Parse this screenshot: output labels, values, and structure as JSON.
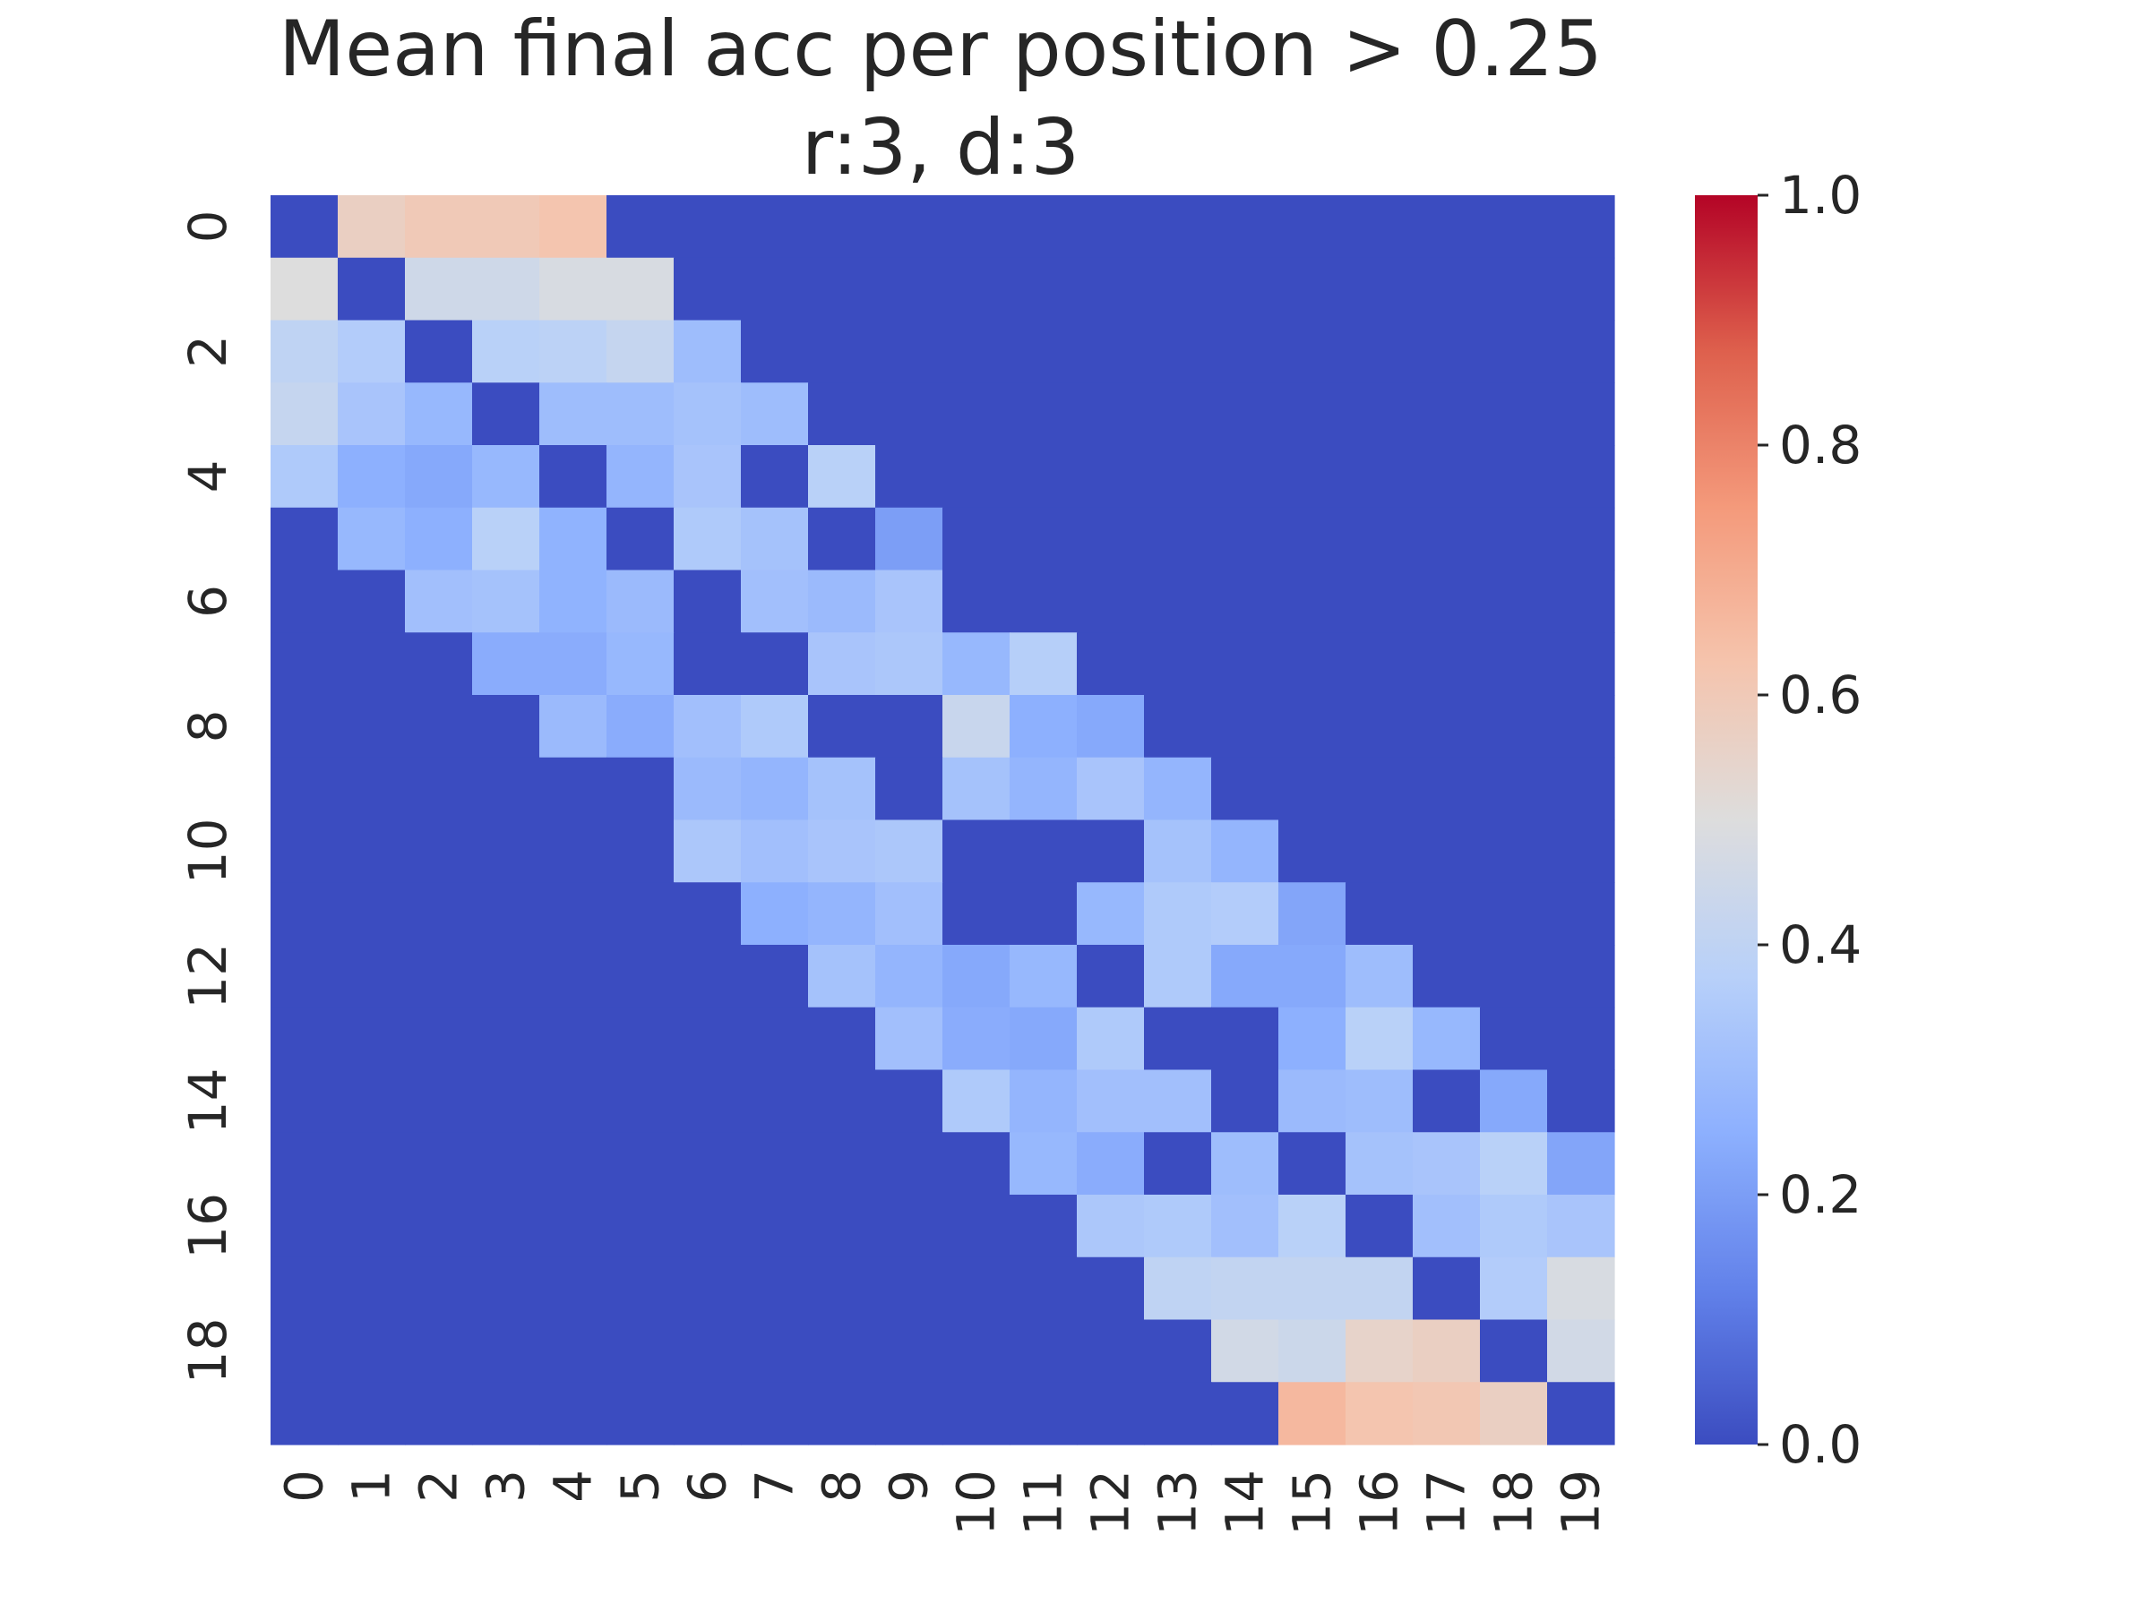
{
  "chart_data": {
    "type": "heatmap",
    "title": "Mean final acc per position > 0.25",
    "subtitle": "r:3, d:3",
    "x_labels": [
      "0",
      "1",
      "2",
      "3",
      "4",
      "5",
      "6",
      "7",
      "8",
      "9",
      "10",
      "11",
      "12",
      "13",
      "14",
      "15",
      "16",
      "17",
      "18",
      "19"
    ],
    "y_labels": [
      "0",
      "",
      "2",
      "",
      "4",
      "",
      "6",
      "",
      "8",
      "",
      "10",
      "",
      "12",
      "",
      "14",
      "",
      "16",
      "",
      "18",
      ""
    ],
    "colormap": "coolwarm",
    "vmin": 0.0,
    "vmax": 1.0,
    "colorbar_ticks": [
      "0.0",
      "0.2",
      "0.4",
      "0.6",
      "0.8",
      "1.0"
    ],
    "colorbar_tick_values": [
      0.0,
      0.2,
      0.4,
      0.6,
      0.8,
      1.0
    ],
    "values": [
      [
        0,
        0.57,
        0.6,
        0.6,
        0.62,
        0,
        0,
        0,
        0,
        0,
        0,
        0,
        0,
        0,
        0,
        0,
        0,
        0,
        0,
        0
      ],
      [
        0.5,
        0,
        0.45,
        0.45,
        0.48,
        0.48,
        0,
        0,
        0,
        0,
        0,
        0,
        0,
        0,
        0,
        0,
        0,
        0,
        0,
        0
      ],
      [
        0.4,
        0.36,
        0,
        0.38,
        0.39,
        0.42,
        0.3,
        0,
        0,
        0,
        0,
        0,
        0,
        0,
        0,
        0,
        0,
        0,
        0,
        0
      ],
      [
        0.42,
        0.33,
        0.28,
        0,
        0.3,
        0.3,
        0.32,
        0.3,
        0,
        0,
        0,
        0,
        0,
        0,
        0,
        0,
        0,
        0,
        0,
        0
      ],
      [
        0.35,
        0.25,
        0.23,
        0.28,
        0,
        0.27,
        0.33,
        0,
        0.38,
        0,
        0,
        0,
        0,
        0,
        0,
        0,
        0,
        0,
        0,
        0
      ],
      [
        0,
        0.28,
        0.25,
        0.38,
        0.26,
        0,
        0.35,
        0.32,
        0,
        0.2,
        0,
        0,
        0,
        0,
        0,
        0,
        0,
        0,
        0,
        0
      ],
      [
        0,
        0,
        0.31,
        0.32,
        0.26,
        0.29,
        0,
        0.31,
        0.29,
        0.33,
        0,
        0,
        0,
        0,
        0,
        0,
        0,
        0,
        0,
        0
      ],
      [
        0,
        0,
        0,
        0.24,
        0.24,
        0.28,
        0,
        0,
        0.33,
        0.34,
        0.28,
        0.37,
        0,
        0,
        0,
        0,
        0,
        0,
        0,
        0
      ],
      [
        0,
        0,
        0,
        0,
        0.29,
        0.24,
        0.31,
        0.35,
        0,
        0,
        0.43,
        0.25,
        0.23,
        0,
        0,
        0,
        0,
        0,
        0,
        0
      ],
      [
        0,
        0,
        0,
        0,
        0,
        0,
        0.29,
        0.27,
        0.32,
        0,
        0.32,
        0.27,
        0.33,
        0.27,
        0,
        0,
        0,
        0,
        0,
        0
      ],
      [
        0,
        0,
        0,
        0,
        0,
        0,
        0.34,
        0.31,
        0.33,
        0.34,
        0,
        0,
        0,
        0.32,
        0.27,
        0,
        0,
        0,
        0,
        0
      ],
      [
        0,
        0,
        0,
        0,
        0,
        0,
        0,
        0.25,
        0.27,
        0.31,
        0,
        0,
        0.28,
        0.35,
        0.36,
        0.22,
        0,
        0,
        0,
        0
      ],
      [
        0,
        0,
        0,
        0,
        0,
        0,
        0,
        0,
        0.32,
        0.27,
        0.23,
        0.28,
        0,
        0.35,
        0.23,
        0.23,
        0.3,
        0,
        0,
        0
      ],
      [
        0,
        0,
        0,
        0,
        0,
        0,
        0,
        0,
        0,
        0.31,
        0.24,
        0.23,
        0.35,
        0,
        0,
        0.25,
        0.38,
        0.28,
        0,
        0
      ],
      [
        0,
        0,
        0,
        0,
        0,
        0,
        0,
        0,
        0,
        0,
        0.35,
        0.27,
        0.31,
        0.31,
        0,
        0.29,
        0.3,
        0,
        0.23,
        0
      ],
      [
        0,
        0,
        0,
        0,
        0,
        0,
        0,
        0,
        0,
        0,
        0,
        0.28,
        0.24,
        0,
        0.3,
        0,
        0.32,
        0.33,
        0.38,
        0.22
      ],
      [
        0,
        0,
        0,
        0,
        0,
        0,
        0,
        0,
        0,
        0,
        0,
        0,
        0.34,
        0.35,
        0.31,
        0.38,
        0,
        0.31,
        0.35,
        0.33
      ],
      [
        0,
        0,
        0,
        0,
        0,
        0,
        0,
        0,
        0,
        0,
        0,
        0,
        0,
        0.4,
        0.41,
        0.41,
        0.41,
        0,
        0.36,
        0.48
      ],
      [
        0,
        0,
        0,
        0,
        0,
        0,
        0,
        0,
        0,
        0,
        0,
        0,
        0,
        0,
        0.46,
        0.44,
        0.55,
        0.57,
        0,
        0.46
      ],
      [
        0,
        0,
        0,
        0,
        0,
        0,
        0,
        0,
        0,
        0,
        0,
        0,
        0,
        0,
        0,
        0.66,
        0.62,
        0.61,
        0.57,
        0
      ]
    ]
  }
}
